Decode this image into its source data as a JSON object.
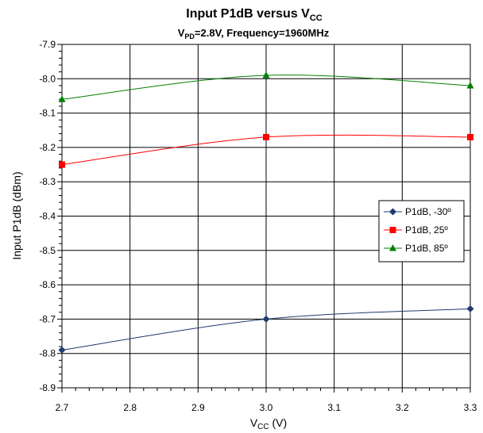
{
  "chart_data": {
    "type": "line",
    "title": {
      "main": "Input P1dB versus V",
      "sub": "CC"
    },
    "subtitle": {
      "v": "V",
      "sub": "PD",
      "rest": "=2.8V, Frequency=1960MHz"
    },
    "xlabel": {
      "v": "V",
      "sub": "CC",
      "rest": " (V)"
    },
    "ylabel": "Input P1dB (dBm)",
    "xlim": [
      2.7,
      3.3
    ],
    "ylim": [
      -8.9,
      -7.9
    ],
    "x_ticks": [
      "2.7",
      "2.8",
      "2.9",
      "3.0",
      "3.1",
      "3.2",
      "3.3"
    ],
    "y_ticks": [
      "-7.9",
      "-8.0",
      "-8.1",
      "-8.2",
      "-8.3",
      "-8.4",
      "-8.5",
      "-8.6",
      "-8.7",
      "-8.8",
      "-8.9"
    ],
    "grid": true,
    "legend_position": "right",
    "series": [
      {
        "name": "P1dB, -30º",
        "color": "#1f3a6e",
        "marker": "diamond",
        "x": [
          2.7,
          3.0,
          3.3
        ],
        "values": [
          -8.79,
          -8.7,
          -8.67
        ]
      },
      {
        "name": "P1dB, 25º",
        "color": "#ff0000",
        "marker": "square",
        "x": [
          2.7,
          3.0,
          3.3
        ],
        "values": [
          -8.25,
          -8.17,
          -8.17
        ]
      },
      {
        "name": "P1dB, 85º",
        "color": "#008000",
        "marker": "triangle",
        "x": [
          2.7,
          3.0,
          3.3
        ],
        "values": [
          -8.06,
          -7.99,
          -8.02
        ]
      }
    ]
  }
}
